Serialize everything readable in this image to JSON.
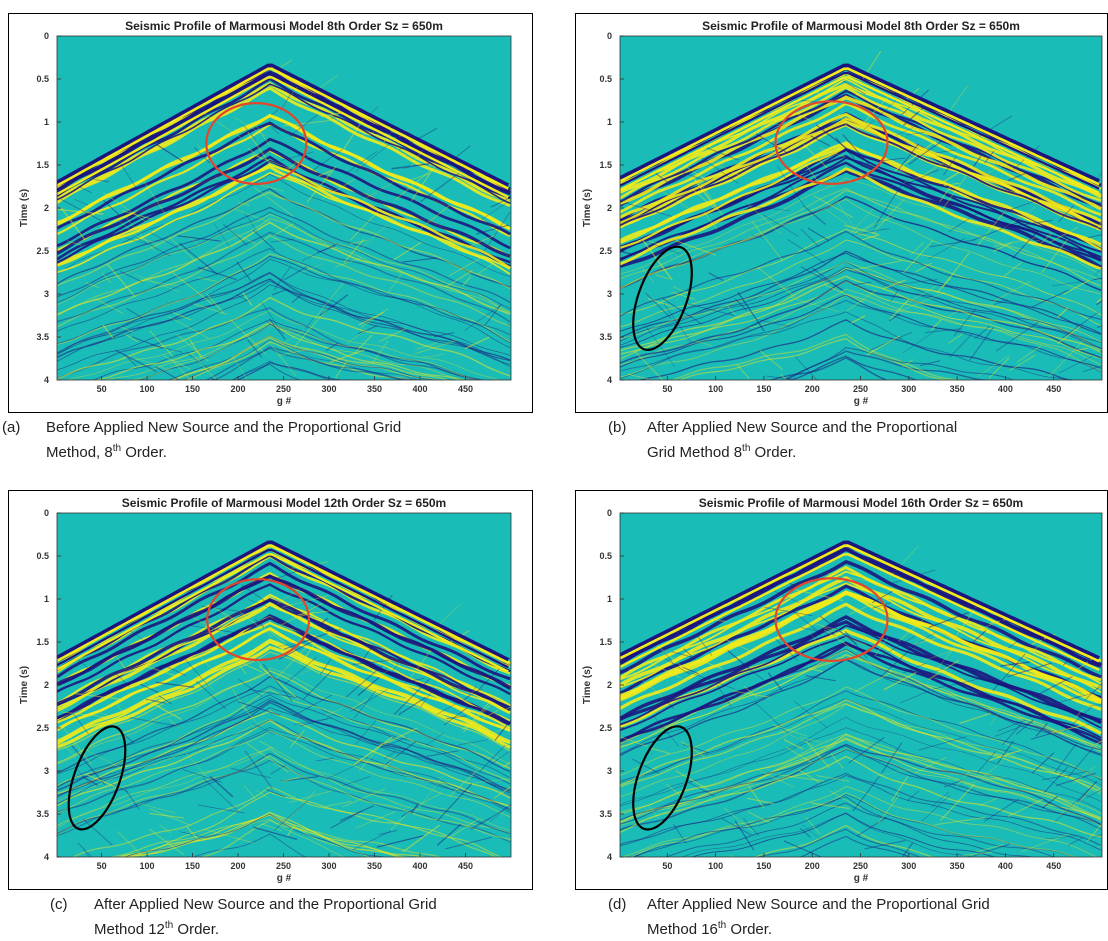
{
  "colors": {
    "background_field": "#19bcb6",
    "positive_amplitude": "#f2ea1a",
    "negative_amplitude": "#1c1580",
    "ellipse_red": "#e2462c",
    "ellipse_black": "#000000"
  },
  "chart_data": [
    {
      "type": "heatmap",
      "title": "Seismic Profile of Marmousi Model 8th Order Sz = 650m",
      "xlabel": "g #",
      "ylabel": "Time (s)",
      "xlim": [
        1,
        500
      ],
      "ylim": [
        4,
        0
      ],
      "xticks": [
        50,
        100,
        150,
        200,
        250,
        300,
        350,
        400,
        450
      ],
      "yticks": [
        0,
        0.5,
        1,
        1.5,
        2,
        2.5,
        3,
        3.5,
        4
      ],
      "first_arrival": {
        "g": [
          1,
          235,
          500
        ],
        "t": [
          1.7,
          0.33,
          1.75
        ]
      },
      "annotations": [
        {
          "shape": "ellipse",
          "color": "red",
          "center": [
            220,
            1.25
          ],
          "radii": [
            55,
            0.47
          ]
        }
      ]
    },
    {
      "type": "heatmap",
      "title": "Seismic Profile of Marmousi Model 8th Order Sz = 650m",
      "xlabel": "g #",
      "ylabel": "Time (s)",
      "xlim": [
        1,
        500
      ],
      "ylim": [
        4,
        0
      ],
      "xticks": [
        50,
        100,
        150,
        200,
        250,
        300,
        350,
        400,
        450
      ],
      "yticks": [
        0,
        0.5,
        1,
        1.5,
        2,
        2.5,
        3,
        3.5,
        4
      ],
      "first_arrival": {
        "g": [
          1,
          235,
          500
        ],
        "t": [
          1.65,
          0.33,
          1.7
        ]
      },
      "annotations": [
        {
          "shape": "ellipse",
          "color": "red",
          "center": [
            220,
            1.24
          ],
          "radii": [
            58,
            0.48
          ]
        },
        {
          "shape": "ellipse",
          "color": "black",
          "center": [
            45,
            3.05
          ],
          "radii": [
            25,
            0.63
          ]
        }
      ]
    },
    {
      "type": "heatmap",
      "title": "Seismic Profile of Marmousi Model 12th Order Sz = 650m",
      "xlabel": "g #",
      "ylabel": "Time (s)",
      "xlim": [
        1,
        500
      ],
      "ylim": [
        4,
        0
      ],
      "xticks": [
        50,
        100,
        150,
        200,
        250,
        300,
        350,
        400,
        450
      ],
      "yticks": [
        0,
        0.5,
        1,
        1.5,
        2,
        2.5,
        3,
        3.5,
        4
      ],
      "first_arrival": {
        "g": [
          1,
          235,
          500
        ],
        "t": [
          1.68,
          0.33,
          1.72
        ]
      },
      "annotations": [
        {
          "shape": "ellipse",
          "color": "red",
          "center": [
            222,
            1.24
          ],
          "radii": [
            56,
            0.47
          ]
        },
        {
          "shape": "ellipse",
          "color": "black",
          "center": [
            45,
            3.08
          ],
          "radii": [
            25,
            0.63
          ]
        }
      ]
    },
    {
      "type": "heatmap",
      "title": "Seismic Profile of Marmousi Model 16th Order Sz = 650m",
      "xlabel": "g #",
      "ylabel": "Time (s)",
      "xlim": [
        1,
        500
      ],
      "ylim": [
        4,
        0
      ],
      "xticks": [
        50,
        100,
        150,
        200,
        250,
        300,
        350,
        400,
        450
      ],
      "yticks": [
        0,
        0.5,
        1,
        1.5,
        2,
        2.5,
        3,
        3.5,
        4
      ],
      "first_arrival": {
        "g": [
          1,
          235,
          500
        ],
        "t": [
          1.65,
          0.33,
          1.7
        ]
      },
      "annotations": [
        {
          "shape": "ellipse",
          "color": "red",
          "center": [
            220,
            1.24
          ],
          "radii": [
            58,
            0.48
          ]
        },
        {
          "shape": "ellipse",
          "color": "black",
          "center": [
            45,
            3.08
          ],
          "radii": [
            25,
            0.63
          ]
        }
      ]
    }
  ],
  "captions": [
    {
      "label": "(a)",
      "line1": "Before Applied New Source and the Proportional Grid",
      "line2_pre": "Method, 8",
      "line2_sup": "th",
      "line2_post": " Order."
    },
    {
      "label": "(b)",
      "line1": "After Applied New Source and  the Proportional",
      "line2_pre": "Grid Method 8",
      "line2_sup": "th",
      "line2_post": " Order."
    },
    {
      "label": "(c)",
      "line1": "After Applied New Source and  the Proportional Grid",
      "line2_pre": "Method 12",
      "line2_sup": "th",
      "line2_post": " Order."
    },
    {
      "label": "(d)",
      "line1": "After Applied New Source and the Proportional Grid",
      "line2_pre": "Method 16",
      "line2_sup": "th",
      "line2_post": " Order."
    }
  ]
}
